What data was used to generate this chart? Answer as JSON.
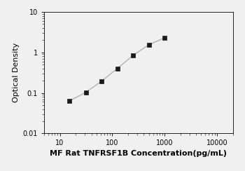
{
  "x_data": [
    15,
    31.25,
    62.5,
    125,
    250,
    500,
    1000
  ],
  "y_data": [
    0.063,
    0.103,
    0.195,
    0.4,
    0.85,
    1.55,
    2.3
  ],
  "xlabel": "MF Rat TNFRSF1B Concentration(pg/mL)",
  "ylabel": "Optical Density",
  "xlim": [
    5,
    20000
  ],
  "ylim": [
    0.01,
    10
  ],
  "xticks": [
    10,
    100,
    1000,
    10000
  ],
  "yticks": [
    0.01,
    0.1,
    1,
    10
  ],
  "line_color": "#b0b0b0",
  "marker_color": "#1a1a1a",
  "marker_style": "s",
  "marker_size": 4.5,
  "line_width": 1.0,
  "xlabel_fontsize": 8,
  "ylabel_fontsize": 8,
  "tick_fontsize": 7,
  "xlabel_fontweight": "bold",
  "bg_color": "#f0f0f0"
}
